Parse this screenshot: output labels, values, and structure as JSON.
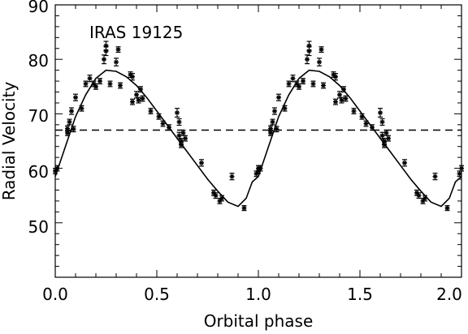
{
  "chart_data": {
    "type": "scatter",
    "title": "",
    "annotation": "IRAS 19125",
    "xlabel": "Orbital phase",
    "ylabel": "Radial Velocity",
    "xlim": [
      0.0,
      2.0
    ],
    "ylim": [
      40,
      90
    ],
    "x_ticks": [
      "0.0",
      "0.5",
      "1.0",
      "1.5",
      "2.0"
    ],
    "y_ticks": [
      "50",
      "60",
      "70",
      "80",
      "90"
    ],
    "grid": false,
    "legend": "none",
    "colors": {
      "points": "#000000",
      "curve": "#000000",
      "reference_line": "#000000"
    },
    "reference_line": {
      "y": 67,
      "style": "dashed"
    },
    "model_curve": {
      "gamma": 67,
      "points": [
        [
          0.0,
          58.5
        ],
        [
          0.05,
          64.0
        ],
        [
          0.1,
          69.5
        ],
        [
          0.15,
          73.5
        ],
        [
          0.2,
          76.5
        ],
        [
          0.25,
          78.0
        ],
        [
          0.3,
          77.8
        ],
        [
          0.35,
          76.8
        ],
        [
          0.4,
          75.2
        ],
        [
          0.45,
          73.0
        ],
        [
          0.5,
          70.5
        ],
        [
          0.55,
          68.0
        ],
        [
          0.6,
          65.5
        ],
        [
          0.65,
          63.0
        ],
        [
          0.7,
          60.5
        ],
        [
          0.75,
          58.0
        ],
        [
          0.8,
          55.8
        ],
        [
          0.85,
          53.8
        ],
        [
          0.9,
          53.0
        ],
        [
          0.94,
          54.5
        ],
        [
          0.97,
          57.5
        ],
        [
          1.0,
          58.5
        ]
      ]
    },
    "series": [
      {
        "marker": "asterisk",
        "points": [
          {
            "x": 0.0,
            "y": 59.5,
            "err": 0.5
          },
          {
            "x": 0.01,
            "y": 60.0,
            "err": 0.5
          },
          {
            "x": 0.06,
            "y": 66.5,
            "err": 0.5
          },
          {
            "x": 0.06,
            "y": 67.3,
            "err": 0.5
          },
          {
            "x": 0.07,
            "y": 68.5,
            "err": 0.5
          },
          {
            "x": 0.08,
            "y": 70.5,
            "err": 0.6
          },
          {
            "x": 0.09,
            "y": 67.2,
            "err": 0.5
          },
          {
            "x": 0.1,
            "y": 73.0,
            "err": 0.6
          },
          {
            "x": 0.13,
            "y": 71.0,
            "err": 0.5
          },
          {
            "x": 0.15,
            "y": 75.5,
            "err": 0.5
          },
          {
            "x": 0.17,
            "y": 76.5,
            "err": 0.6
          },
          {
            "x": 0.19,
            "y": 75.5,
            "err": 0.5
          },
          {
            "x": 0.2,
            "y": 75.0,
            "err": 0.5
          },
          {
            "x": 0.22,
            "y": 76.0,
            "err": 0.5
          },
          {
            "x": 0.24,
            "y": 80.0,
            "err": 0.8
          },
          {
            "x": 0.25,
            "y": 81.5,
            "err": 0.8
          },
          {
            "x": 0.25,
            "y": 82.5,
            "err": 0.8
          },
          {
            "x": 0.27,
            "y": 75.5,
            "err": 0.5
          },
          {
            "x": 0.3,
            "y": 79.5,
            "err": 0.7
          },
          {
            "x": 0.31,
            "y": 81.8,
            "err": 0.5
          },
          {
            "x": 0.32,
            "y": 75.2,
            "err": 0.5
          },
          {
            "x": 0.37,
            "y": 77.2,
            "err": 0.5
          },
          {
            "x": 0.38,
            "y": 76.8,
            "err": 0.6
          },
          {
            "x": 0.38,
            "y": 72.2,
            "err": 0.5
          },
          {
            "x": 0.4,
            "y": 73.5,
            "err": 0.6
          },
          {
            "x": 0.41,
            "y": 72.5,
            "err": 0.5
          },
          {
            "x": 0.42,
            "y": 74.5,
            "err": 0.5
          },
          {
            "x": 0.43,
            "y": 72.8,
            "err": 0.5
          },
          {
            "x": 0.47,
            "y": 70.5,
            "err": 0.5
          },
          {
            "x": 0.51,
            "y": 69.5,
            "err": 0.5
          },
          {
            "x": 0.53,
            "y": 68.2,
            "err": 0.5
          },
          {
            "x": 0.56,
            "y": 67.5,
            "err": 0.5
          },
          {
            "x": 0.6,
            "y": 70.2,
            "err": 0.8
          },
          {
            "x": 0.61,
            "y": 68.5,
            "err": 0.6
          },
          {
            "x": 0.61,
            "y": 66.0,
            "err": 0.6
          },
          {
            "x": 0.62,
            "y": 65.0,
            "err": 0.5
          },
          {
            "x": 0.62,
            "y": 64.3,
            "err": 0.5
          },
          {
            "x": 0.63,
            "y": 66.5,
            "err": 0.5
          },
          {
            "x": 0.64,
            "y": 65.5,
            "err": 0.5
          },
          {
            "x": 0.72,
            "y": 61.0,
            "err": 0.6
          },
          {
            "x": 0.78,
            "y": 55.5,
            "err": 0.5
          },
          {
            "x": 0.79,
            "y": 55.0,
            "err": 0.5
          },
          {
            "x": 0.81,
            "y": 54.0,
            "err": 0.5
          },
          {
            "x": 0.82,
            "y": 54.5,
            "err": 0.5
          },
          {
            "x": 0.87,
            "y": 58.5,
            "err": 0.6
          },
          {
            "x": 0.93,
            "y": 52.7,
            "err": 0.3
          },
          {
            "x": 0.99,
            "y": 59.0,
            "err": 0.5
          },
          {
            "x": 1.0,
            "y": 60.0,
            "err": 0.5
          }
        ]
      }
    ]
  }
}
